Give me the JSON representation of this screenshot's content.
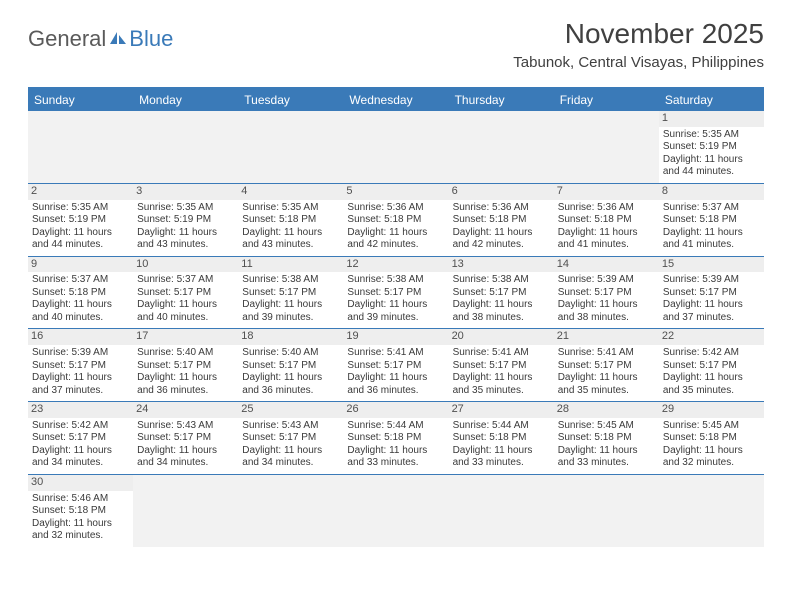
{
  "brand": {
    "part1": "General",
    "part2": "Blue"
  },
  "header": {
    "title": "November 2025",
    "location": "Tabunok, Central Visayas, Philippines"
  },
  "colors": {
    "accent": "#3a7ab8",
    "text": "#3a3a3a",
    "header_text": "#404040",
    "daynum_bg": "#eeeeee",
    "empty_bg": "#f2f2f2"
  },
  "weekdays": [
    "Sunday",
    "Monday",
    "Tuesday",
    "Wednesday",
    "Thursday",
    "Friday",
    "Saturday"
  ],
  "weeks": [
    [
      null,
      null,
      null,
      null,
      null,
      null,
      {
        "n": "1",
        "sr": "5:35 AM",
        "ss": "5:19 PM",
        "dl": "11 hours and 44 minutes."
      }
    ],
    [
      {
        "n": "2",
        "sr": "5:35 AM",
        "ss": "5:19 PM",
        "dl": "11 hours and 44 minutes."
      },
      {
        "n": "3",
        "sr": "5:35 AM",
        "ss": "5:19 PM",
        "dl": "11 hours and 43 minutes."
      },
      {
        "n": "4",
        "sr": "5:35 AM",
        "ss": "5:18 PM",
        "dl": "11 hours and 43 minutes."
      },
      {
        "n": "5",
        "sr": "5:36 AM",
        "ss": "5:18 PM",
        "dl": "11 hours and 42 minutes."
      },
      {
        "n": "6",
        "sr": "5:36 AM",
        "ss": "5:18 PM",
        "dl": "11 hours and 42 minutes."
      },
      {
        "n": "7",
        "sr": "5:36 AM",
        "ss": "5:18 PM",
        "dl": "11 hours and 41 minutes."
      },
      {
        "n": "8",
        "sr": "5:37 AM",
        "ss": "5:18 PM",
        "dl": "11 hours and 41 minutes."
      }
    ],
    [
      {
        "n": "9",
        "sr": "5:37 AM",
        "ss": "5:18 PM",
        "dl": "11 hours and 40 minutes."
      },
      {
        "n": "10",
        "sr": "5:37 AM",
        "ss": "5:17 PM",
        "dl": "11 hours and 40 minutes."
      },
      {
        "n": "11",
        "sr": "5:38 AM",
        "ss": "5:17 PM",
        "dl": "11 hours and 39 minutes."
      },
      {
        "n": "12",
        "sr": "5:38 AM",
        "ss": "5:17 PM",
        "dl": "11 hours and 39 minutes."
      },
      {
        "n": "13",
        "sr": "5:38 AM",
        "ss": "5:17 PM",
        "dl": "11 hours and 38 minutes."
      },
      {
        "n": "14",
        "sr": "5:39 AM",
        "ss": "5:17 PM",
        "dl": "11 hours and 38 minutes."
      },
      {
        "n": "15",
        "sr": "5:39 AM",
        "ss": "5:17 PM",
        "dl": "11 hours and 37 minutes."
      }
    ],
    [
      {
        "n": "16",
        "sr": "5:39 AM",
        "ss": "5:17 PM",
        "dl": "11 hours and 37 minutes."
      },
      {
        "n": "17",
        "sr": "5:40 AM",
        "ss": "5:17 PM",
        "dl": "11 hours and 36 minutes."
      },
      {
        "n": "18",
        "sr": "5:40 AM",
        "ss": "5:17 PM",
        "dl": "11 hours and 36 minutes."
      },
      {
        "n": "19",
        "sr": "5:41 AM",
        "ss": "5:17 PM",
        "dl": "11 hours and 36 minutes."
      },
      {
        "n": "20",
        "sr": "5:41 AM",
        "ss": "5:17 PM",
        "dl": "11 hours and 35 minutes."
      },
      {
        "n": "21",
        "sr": "5:41 AM",
        "ss": "5:17 PM",
        "dl": "11 hours and 35 minutes."
      },
      {
        "n": "22",
        "sr": "5:42 AM",
        "ss": "5:17 PM",
        "dl": "11 hours and 35 minutes."
      }
    ],
    [
      {
        "n": "23",
        "sr": "5:42 AM",
        "ss": "5:17 PM",
        "dl": "11 hours and 34 minutes."
      },
      {
        "n": "24",
        "sr": "5:43 AM",
        "ss": "5:17 PM",
        "dl": "11 hours and 34 minutes."
      },
      {
        "n": "25",
        "sr": "5:43 AM",
        "ss": "5:17 PM",
        "dl": "11 hours and 34 minutes."
      },
      {
        "n": "26",
        "sr": "5:44 AM",
        "ss": "5:18 PM",
        "dl": "11 hours and 33 minutes."
      },
      {
        "n": "27",
        "sr": "5:44 AM",
        "ss": "5:18 PM",
        "dl": "11 hours and 33 minutes."
      },
      {
        "n": "28",
        "sr": "5:45 AM",
        "ss": "5:18 PM",
        "dl": "11 hours and 33 minutes."
      },
      {
        "n": "29",
        "sr": "5:45 AM",
        "ss": "5:18 PM",
        "dl": "11 hours and 32 minutes."
      }
    ],
    [
      {
        "n": "30",
        "sr": "5:46 AM",
        "ss": "5:18 PM",
        "dl": "11 hours and 32 minutes."
      },
      null,
      null,
      null,
      null,
      null,
      null
    ]
  ],
  "labels": {
    "sunrise": "Sunrise:",
    "sunset": "Sunset:",
    "daylight": "Daylight:"
  }
}
